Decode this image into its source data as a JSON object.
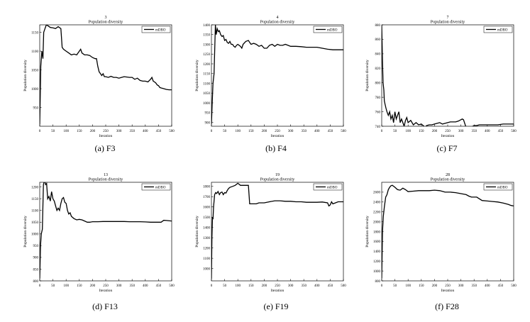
{
  "figure": {
    "panels": [
      {
        "id": "a",
        "caption": "(a) F3",
        "num": "3",
        "title": "Population diversity",
        "ylabel": "Population diversity",
        "xlabel": "Iteration",
        "legend": "mDBO"
      },
      {
        "id": "b",
        "caption": "(b) F4",
        "num": "4",
        "title": "Population diversity",
        "ylabel": "Population diversity",
        "xlabel": "Iteration",
        "legend": "mDBO"
      },
      {
        "id": "c",
        "caption": "(c) F7",
        "num": "7",
        "title": "Population diversity",
        "ylabel": "Population diversity",
        "xlabel": "Iteration",
        "legend": "mDBO"
      },
      {
        "id": "d",
        "caption": "(d) F13",
        "num": "13",
        "title": "Population diversity",
        "ylabel": "Population diversity",
        "xlabel": "Iteration",
        "legend": "mDBO"
      },
      {
        "id": "e",
        "caption": "(e) F19",
        "num": "19",
        "title": "Population diversity",
        "ylabel": "Population diversity",
        "xlabel": "Iteration",
        "legend": "mDBO"
      },
      {
        "id": "f",
        "caption": "(f) F28",
        "num": "28",
        "title": "Population diversity",
        "ylabel": "Population diversity",
        "xlabel": "Iteration",
        "legend": "mDBO"
      }
    ]
  },
  "chart_data": [
    {
      "type": "line",
      "title": "3",
      "subtitle": "Population diversity",
      "xlabel": "Iteration",
      "ylabel": "Population diversity",
      "xlim": [
        0,
        500
      ],
      "ylim": [
        900,
        1170
      ],
      "xticks": [
        0,
        50,
        100,
        150,
        200,
        250,
        300,
        350,
        400,
        450,
        500
      ],
      "yticks": [
        950,
        1000,
        1050,
        1100,
        1150
      ],
      "legend_position": "top-right",
      "series": [
        {
          "name": "mDBO",
          "color": "#000000",
          "x": [
            0,
            4,
            8,
            12,
            15,
            20,
            25,
            30,
            40,
            50,
            60,
            70,
            80,
            85,
            90,
            100,
            110,
            120,
            130,
            140,
            150,
            155,
            160,
            170,
            180,
            190,
            200,
            210,
            215,
            220,
            225,
            230,
            235,
            240,
            245,
            250,
            260,
            270,
            280,
            290,
            300,
            310,
            320,
            330,
            340,
            350,
            360,
            370,
            380,
            390,
            400,
            410,
            420,
            425,
            430,
            435,
            440,
            445,
            450,
            455,
            460,
            470,
            480,
            490,
            500
          ],
          "y": [
            905,
            1060,
            1100,
            1080,
            1150,
            1160,
            1170,
            1168,
            1163,
            1162,
            1160,
            1165,
            1160,
            1110,
            1105,
            1100,
            1095,
            1090,
            1092,
            1090,
            1100,
            1105,
            1095,
            1090,
            1090,
            1088,
            1083,
            1080,
            1080,
            1060,
            1045,
            1040,
            1035,
            1040,
            1032,
            1032,
            1030,
            1033,
            1030,
            1030,
            1028,
            1030,
            1032,
            1031,
            1030,
            1030,
            1025,
            1028,
            1022,
            1020,
            1020,
            1018,
            1025,
            1030,
            1020,
            1018,
            1015,
            1010,
            1008,
            1003,
            1002,
            1000,
            998,
            997,
            997
          ]
        }
      ]
    },
    {
      "type": "line",
      "title": "4",
      "subtitle": "Population diversity",
      "xlabel": "Iteration",
      "ylabel": "Population diversity",
      "xlim": [
        0,
        500
      ],
      "ylim": [
        880,
        1400
      ],
      "xticks": [
        0,
        50,
        100,
        150,
        200,
        250,
        300,
        350,
        400,
        450,
        500
      ],
      "yticks": [
        900,
        950,
        1000,
        1050,
        1100,
        1150,
        1200,
        1250,
        1300,
        1350,
        1400
      ],
      "legend_position": "top-right",
      "series": [
        {
          "name": "mDBO",
          "color": "#000000",
          "x": [
            0,
            3,
            6,
            10,
            15,
            18,
            22,
            26,
            30,
            35,
            40,
            45,
            50,
            55,
            60,
            65,
            70,
            75,
            80,
            85,
            90,
            95,
            100,
            110,
            115,
            120,
            130,
            140,
            145,
            150,
            160,
            170,
            180,
            190,
            200,
            210,
            220,
            230,
            240,
            250,
            260,
            270,
            280,
            290,
            300,
            320,
            340,
            360,
            380,
            400,
            420,
            440,
            460,
            480,
            500
          ],
          "y": [
            890,
            1000,
            1100,
            1150,
            1400,
            1350,
            1380,
            1365,
            1370,
            1350,
            1340,
            1345,
            1320,
            1325,
            1310,
            1305,
            1315,
            1300,
            1300,
            1290,
            1285,
            1295,
            1300,
            1290,
            1280,
            1300,
            1315,
            1320,
            1310,
            1300,
            1305,
            1300,
            1290,
            1295,
            1280,
            1280,
            1295,
            1300,
            1290,
            1300,
            1295,
            1295,
            1300,
            1295,
            1290,
            1290,
            1288,
            1285,
            1285,
            1285,
            1280,
            1275,
            1272,
            1272,
            1272
          ]
        }
      ]
    },
    {
      "type": "line",
      "title": "7",
      "subtitle": "Population diversity",
      "xlabel": "Iteration",
      "ylabel": "Population diversity",
      "xlim": [
        0,
        500
      ],
      "ylim": [
        740,
        880
      ],
      "xticks": [
        0,
        50,
        100,
        150,
        200,
        250,
        300,
        350,
        400,
        450,
        500
      ],
      "yticks": [
        740,
        760,
        780,
        800,
        820,
        840,
        860,
        880
      ],
      "legend_position": "top-right",
      "series": [
        {
          "name": "mDBO",
          "color": "#000000",
          "x": [
            0,
            3,
            5,
            8,
            10,
            13,
            16,
            20,
            25,
            30,
            35,
            40,
            45,
            50,
            55,
            60,
            65,
            70,
            75,
            80,
            85,
            90,
            95,
            100,
            110,
            120,
            130,
            140,
            150,
            160,
            165,
            170,
            180,
            190,
            200,
            210,
            220,
            230,
            240,
            250,
            260,
            270,
            280,
            290,
            300,
            305,
            310,
            320,
            330,
            340,
            350,
            360,
            370,
            380,
            390,
            400,
            420,
            440,
            460,
            480,
            500
          ],
          "y": [
            880,
            830,
            800,
            790,
            775,
            770,
            765,
            760,
            755,
            760,
            750,
            755,
            745,
            760,
            750,
            755,
            760,
            745,
            750,
            745,
            740,
            748,
            752,
            745,
            748,
            742,
            745,
            742,
            743,
            740,
            738,
            741,
            742,
            742,
            743,
            744,
            745,
            743,
            744,
            745,
            746,
            746,
            746,
            747,
            749,
            750,
            749,
            738,
            738,
            739,
            741,
            741,
            742,
            742,
            742,
            742,
            742,
            742,
            743,
            743,
            743
          ]
        }
      ]
    },
    {
      "type": "line",
      "title": "13",
      "subtitle": "Population diversity",
      "xlabel": "Iteration",
      "ylabel": "Population diversity",
      "xlim": [
        0,
        500
      ],
      "ylim": [
        800,
        1220
      ],
      "xticks": [
        0,
        50,
        100,
        150,
        200,
        250,
        300,
        350,
        400,
        450,
        500
      ],
      "yticks": [
        800,
        850,
        900,
        950,
        1000,
        1050,
        1100,
        1150,
        1200
      ],
      "legend_position": "top-right",
      "series": [
        {
          "name": "mDBO",
          "color": "#000000",
          "x": [
            0,
            3,
            6,
            10,
            14,
            18,
            22,
            26,
            30,
            35,
            40,
            45,
            50,
            55,
            60,
            65,
            70,
            75,
            80,
            85,
            90,
            95,
            100,
            105,
            110,
            115,
            120,
            130,
            140,
            150,
            160,
            170,
            180,
            190,
            200,
            220,
            240,
            260,
            280,
            300,
            320,
            340,
            360,
            380,
            400,
            420,
            440,
            460,
            470,
            480,
            500
          ],
          "y": [
            810,
            950,
            1000,
            1020,
            1210,
            1230,
            1210,
            1215,
            1150,
            1160,
            1140,
            1180,
            1150,
            1140,
            1120,
            1100,
            1110,
            1100,
            1130,
            1150,
            1155,
            1135,
            1130,
            1100,
            1085,
            1090,
            1075,
            1065,
            1060,
            1062,
            1060,
            1055,
            1050,
            1050,
            1052,
            1052,
            1053,
            1053,
            1053,
            1053,
            1053,
            1052,
            1052,
            1052,
            1051,
            1050,
            1050,
            1050,
            1058,
            1057,
            1055
          ]
        }
      ]
    },
    {
      "type": "line",
      "title": "19",
      "subtitle": "Population diversity",
      "xlabel": "Iteration",
      "ylabel": "Population diversity",
      "xlim": [
        0,
        500
      ],
      "ylim": [
        880,
        1840
      ],
      "xticks": [
        0,
        50,
        100,
        150,
        200,
        250,
        300,
        350,
        400,
        450,
        500
      ],
      "yticks": [
        1000,
        1100,
        1200,
        1300,
        1400,
        1500,
        1600,
        1700,
        1800
      ],
      "legend_position": "top-right",
      "series": [
        {
          "name": "mDBO",
          "color": "#000000",
          "x": [
            0,
            2,
            4,
            6,
            8,
            12,
            16,
            20,
            25,
            30,
            35,
            40,
            45,
            50,
            55,
            60,
            65,
            70,
            80,
            90,
            95,
            100,
            110,
            120,
            130,
            140,
            145,
            150,
            160,
            170,
            180,
            190,
            200,
            220,
            240,
            260,
            280,
            300,
            320,
            340,
            360,
            380,
            400,
            420,
            440,
            445,
            450,
            455,
            460,
            470,
            480,
            490,
            500
          ],
          "y": [
            900,
            1300,
            1500,
            1480,
            1600,
            1720,
            1740,
            1730,
            1750,
            1720,
            1740,
            1745,
            1720,
            1740,
            1735,
            1760,
            1780,
            1790,
            1800,
            1810,
            1820,
            1830,
            1810,
            1810,
            1810,
            1810,
            1630,
            1630,
            1630,
            1630,
            1640,
            1640,
            1640,
            1650,
            1660,
            1660,
            1655,
            1655,
            1650,
            1650,
            1645,
            1645,
            1645,
            1648,
            1640,
            1610,
            1620,
            1650,
            1630,
            1640,
            1650,
            1650,
            1650
          ]
        }
      ]
    },
    {
      "type": "line",
      "title": "28",
      "subtitle": "Population diversity",
      "xlabel": "Iteration",
      "ylabel": "Population diversity",
      "xlim": [
        0,
        500
      ],
      "ylim": [
        800,
        2800
      ],
      "xticks": [
        0,
        50,
        100,
        150,
        200,
        250,
        300,
        350,
        400,
        450,
        500
      ],
      "yticks": [
        800,
        1000,
        1200,
        1400,
        1600,
        1800,
        2000,
        2200,
        2400,
        2600
      ],
      "legend_position": "top-right",
      "series": [
        {
          "name": "mDBO",
          "color": "#000000",
          "x": [
            0,
            3,
            6,
            10,
            15,
            20,
            25,
            30,
            35,
            40,
            50,
            60,
            70,
            80,
            90,
            100,
            120,
            140,
            160,
            180,
            200,
            220,
            240,
            260,
            280,
            300,
            320,
            330,
            340,
            360,
            380,
            400,
            420,
            440,
            460,
            480,
            490,
            500
          ],
          "y": [
            850,
            1800,
            2100,
            2300,
            2500,
            2550,
            2650,
            2700,
            2730,
            2740,
            2700,
            2650,
            2640,
            2680,
            2650,
            2610,
            2620,
            2630,
            2630,
            2630,
            2640,
            2630,
            2600,
            2600,
            2590,
            2570,
            2550,
            2520,
            2500,
            2500,
            2430,
            2420,
            2410,
            2400,
            2380,
            2350,
            2330,
            2320
          ]
        }
      ]
    }
  ]
}
